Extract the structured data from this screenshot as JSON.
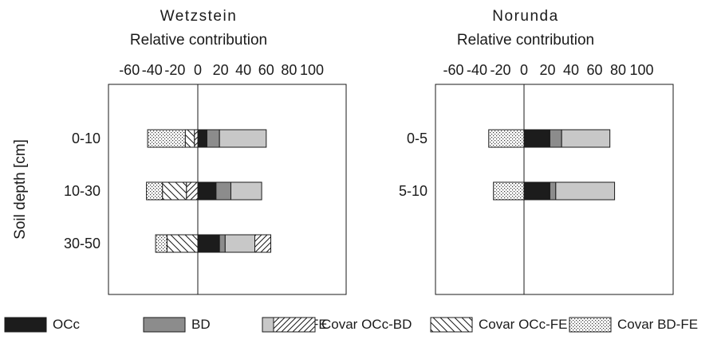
{
  "chart_data": [
    {
      "type": "bar",
      "orientation": "horizontal",
      "stacked": true,
      "title_line1": "Wetzstein",
      "title_line2": "Relative contribution",
      "ylabel": "Soil depth [cm]",
      "xlim": [
        -60,
        100
      ],
      "xticks": [
        -60,
        -40,
        -20,
        0,
        20,
        40,
        60,
        80,
        100
      ],
      "categories": [
        "0-10",
        "10-30",
        "30-50"
      ],
      "negative_stack_order": [
        "Covar OCc-BD",
        "Covar OCc-FE",
        "Covar BD-FE"
      ],
      "positive_stack_order": [
        "OCc",
        "BD",
        "FE",
        "Covar OCc-BD"
      ],
      "series": [
        {
          "name": "OCc",
          "values": [
            8,
            16,
            19
          ]
        },
        {
          "name": "BD",
          "values": [
            11,
            13,
            5
          ]
        },
        {
          "name": "FE",
          "values": [
            41,
            27,
            26
          ]
        },
        {
          "name": "Covar OCc-BD",
          "values": [
            -3,
            -10,
            14
          ]
        },
        {
          "name": "Covar OCc-FE",
          "values": [
            -8,
            -21,
            -27
          ]
        },
        {
          "name": "Covar BD-FE",
          "values": [
            -33,
            -14,
            -10
          ]
        }
      ]
    },
    {
      "type": "bar",
      "orientation": "horizontal",
      "stacked": true,
      "title_line1": "Norunda",
      "title_line2": "Relative contribution",
      "ylabel": "",
      "xlim": [
        -60,
        100
      ],
      "xticks": [
        -60,
        -40,
        -20,
        0,
        20,
        40,
        60,
        80,
        100
      ],
      "categories": [
        "0-5",
        "5-10"
      ],
      "negative_stack_order": [
        "Covar OCc-BD",
        "Covar OCc-FE",
        "Covar BD-FE"
      ],
      "positive_stack_order": [
        "OCc",
        "BD",
        "FE",
        "Covar OCc-BD"
      ],
      "series": [
        {
          "name": "OCc",
          "values": [
            22,
            22
          ]
        },
        {
          "name": "BD",
          "values": [
            10,
            5
          ]
        },
        {
          "name": "FE",
          "values": [
            41,
            50
          ]
        },
        {
          "name": "Covar OCc-BD",
          "values": [
            0,
            0
          ]
        },
        {
          "name": "Covar OCc-FE",
          "values": [
            0,
            0
          ]
        },
        {
          "name": "Covar BD-FE",
          "values": [
            -30,
            -26
          ]
        }
      ]
    }
  ],
  "legend": {
    "position": "bottom",
    "items": [
      {
        "name": "OCc",
        "fill": "#1c1c1c",
        "pattern": "solid"
      },
      {
        "name": "BD",
        "fill": "#8c8c8c",
        "pattern": "solid"
      },
      {
        "name": "FE",
        "fill": "#c8c8c8",
        "pattern": "solid"
      },
      {
        "name": "Covar OCc-BD",
        "fill": "#ffffff",
        "pattern": "hatch-forward"
      },
      {
        "name": "Covar OCc-FE",
        "fill": "#ffffff",
        "pattern": "hatch-back"
      },
      {
        "name": "Covar BD-FE",
        "fill": "#ffffff",
        "pattern": "dots"
      }
    ]
  }
}
